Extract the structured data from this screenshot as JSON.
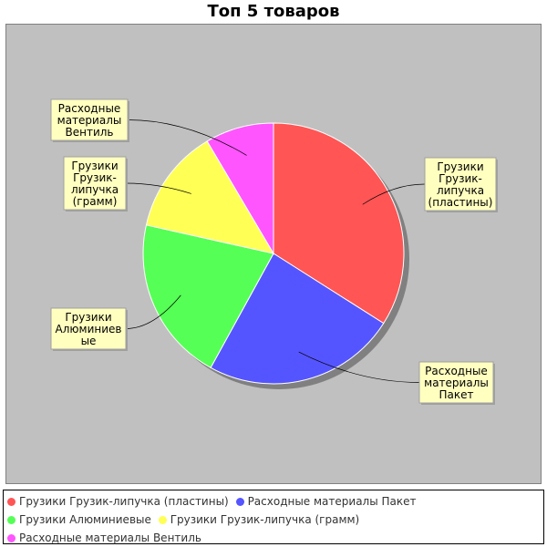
{
  "chart_data": {
    "type": "pie",
    "title": "Топ 5 товаров",
    "series": [
      {
        "name": "Грузики Грузик-липучка (пластины)",
        "value": 34,
        "color": "#ff5555",
        "label_lines": [
          "Грузики",
          "Грузик-",
          "липучка",
          "(пластины)"
        ]
      },
      {
        "name": "Расходные материалы Пакет",
        "value": 24,
        "color": "#5555ff",
        "label_lines": [
          "Расходные",
          "материалы",
          "Пакет"
        ]
      },
      {
        "name": "Грузики Алюминиевые",
        "value": 20.5,
        "color": "#55ff55",
        "label_lines": [
          "Грузики",
          "Алюминиев",
          "ые"
        ]
      },
      {
        "name": "Грузики Грузик-липучка (грамм)",
        "value": 13,
        "color": "#ffff55",
        "label_lines": [
          "Грузики",
          "Грузик-",
          "липучка",
          "(грамм)"
        ]
      },
      {
        "name": "Расходные материалы Вентиль",
        "value": 8.5,
        "color": "#ff55ff",
        "label_lines": [
          "Расходные",
          "материалы",
          "Вентиль"
        ]
      }
    ],
    "legend_position": "bottom"
  }
}
